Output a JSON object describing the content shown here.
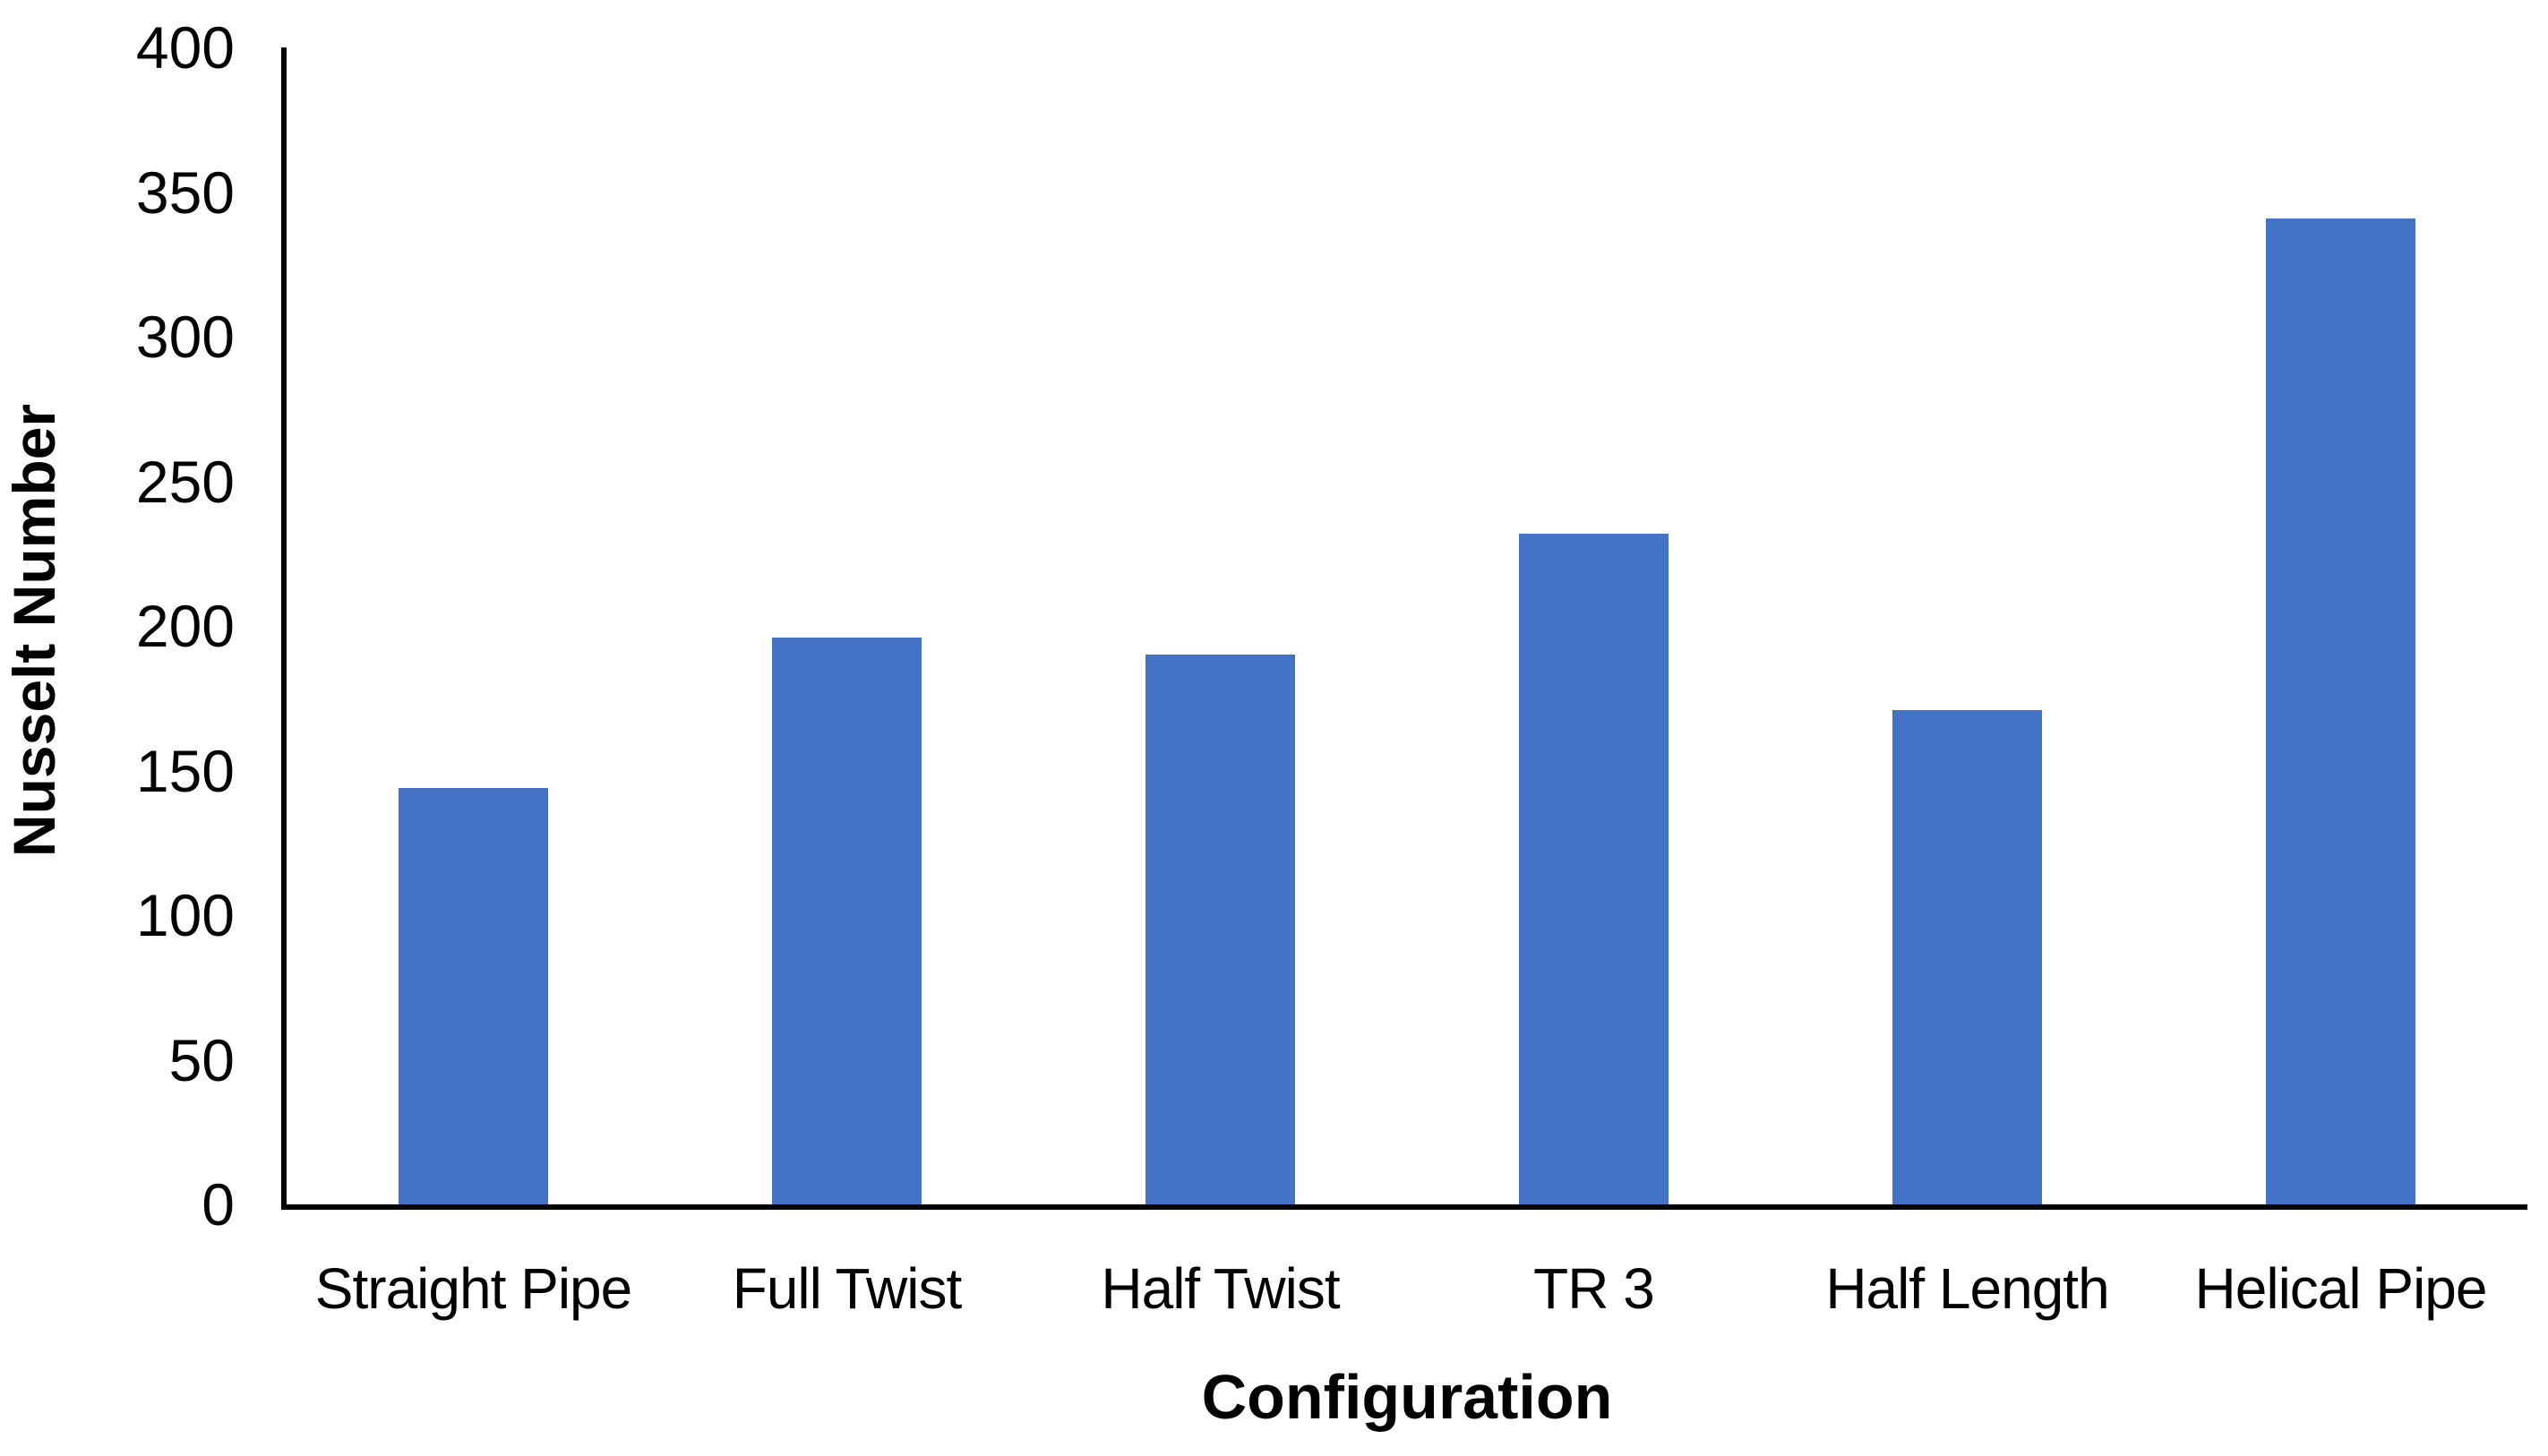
{
  "figure": {
    "background": "#ffffff"
  },
  "chart_data": {
    "type": "bar",
    "title": "",
    "xlabel": "Configuration",
    "ylabel": "Nusselt Number",
    "categories": [
      "Straight Pipe",
      "Full Twist",
      "Half Twist",
      "TR 3",
      "Half Length",
      "Helical Pipe"
    ],
    "values": [
      144,
      196,
      190,
      232,
      171,
      341
    ],
    "ylim": [
      0,
      400
    ],
    "yticks": [
      0,
      50,
      100,
      150,
      200,
      250,
      300,
      350,
      400
    ],
    "grid": "off",
    "legend": "none",
    "bar_color": "#4472C4",
    "axis_color": "#000000",
    "text_color": "#000000"
  }
}
